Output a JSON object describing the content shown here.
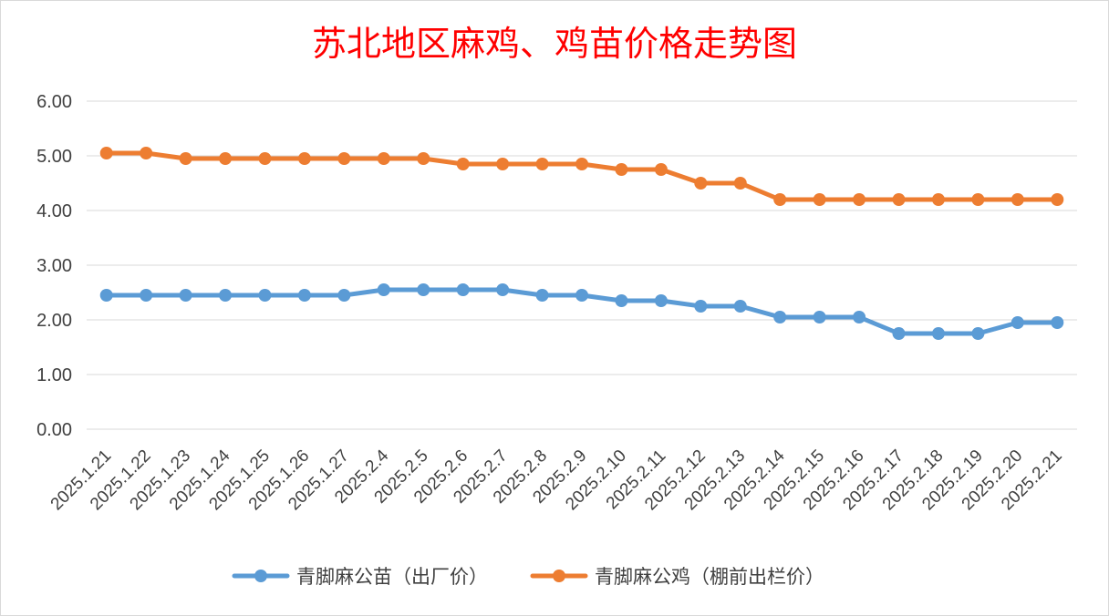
{
  "chart_data": {
    "type": "line",
    "title": "苏北地区麻鸡、鸡苗价格走势图",
    "x": [
      "2025.1.21",
      "2025.1.22",
      "2025.1.23",
      "2025.1.24",
      "2025.1.25",
      "2025.1.26",
      "2025.1.27",
      "2025.2.4",
      "2025.2.5",
      "2025.2.6",
      "2025.2.7",
      "2025.2.8",
      "2025.2.9",
      "2025.2.10",
      "2025.2.11",
      "2025.2.12",
      "2025.2.13",
      "2025.2.14",
      "2025.2.15",
      "2025.2.16",
      "2025.2.17",
      "2025.2.18",
      "2025.2.19",
      "2025.2.20",
      "2025.2.21"
    ],
    "yticks": [
      "0.00",
      "1.00",
      "2.00",
      "3.00",
      "4.00",
      "5.00",
      "6.00"
    ],
    "ylim": [
      0,
      6
    ],
    "grid": true,
    "legend_position": "bottom",
    "series": [
      {
        "name": "青脚麻公苗（出厂价）",
        "color": "#5b9bd5",
        "values": [
          2.45,
          2.45,
          2.45,
          2.45,
          2.45,
          2.45,
          2.45,
          2.55,
          2.55,
          2.55,
          2.55,
          2.45,
          2.45,
          2.35,
          2.35,
          2.25,
          2.25,
          2.05,
          2.05,
          2.05,
          1.75,
          1.75,
          1.75,
          1.95,
          1.95
        ]
      },
      {
        "name": "青脚麻公鸡（棚前出栏价）",
        "color": "#ed7d31",
        "values": [
          5.05,
          5.05,
          4.95,
          4.95,
          4.95,
          4.95,
          4.95,
          4.95,
          4.95,
          4.85,
          4.85,
          4.85,
          4.85,
          4.75,
          4.75,
          4.5,
          4.5,
          4.2,
          4.2,
          4.2,
          4.2,
          4.2,
          4.2,
          4.2,
          4.2
        ]
      }
    ]
  }
}
